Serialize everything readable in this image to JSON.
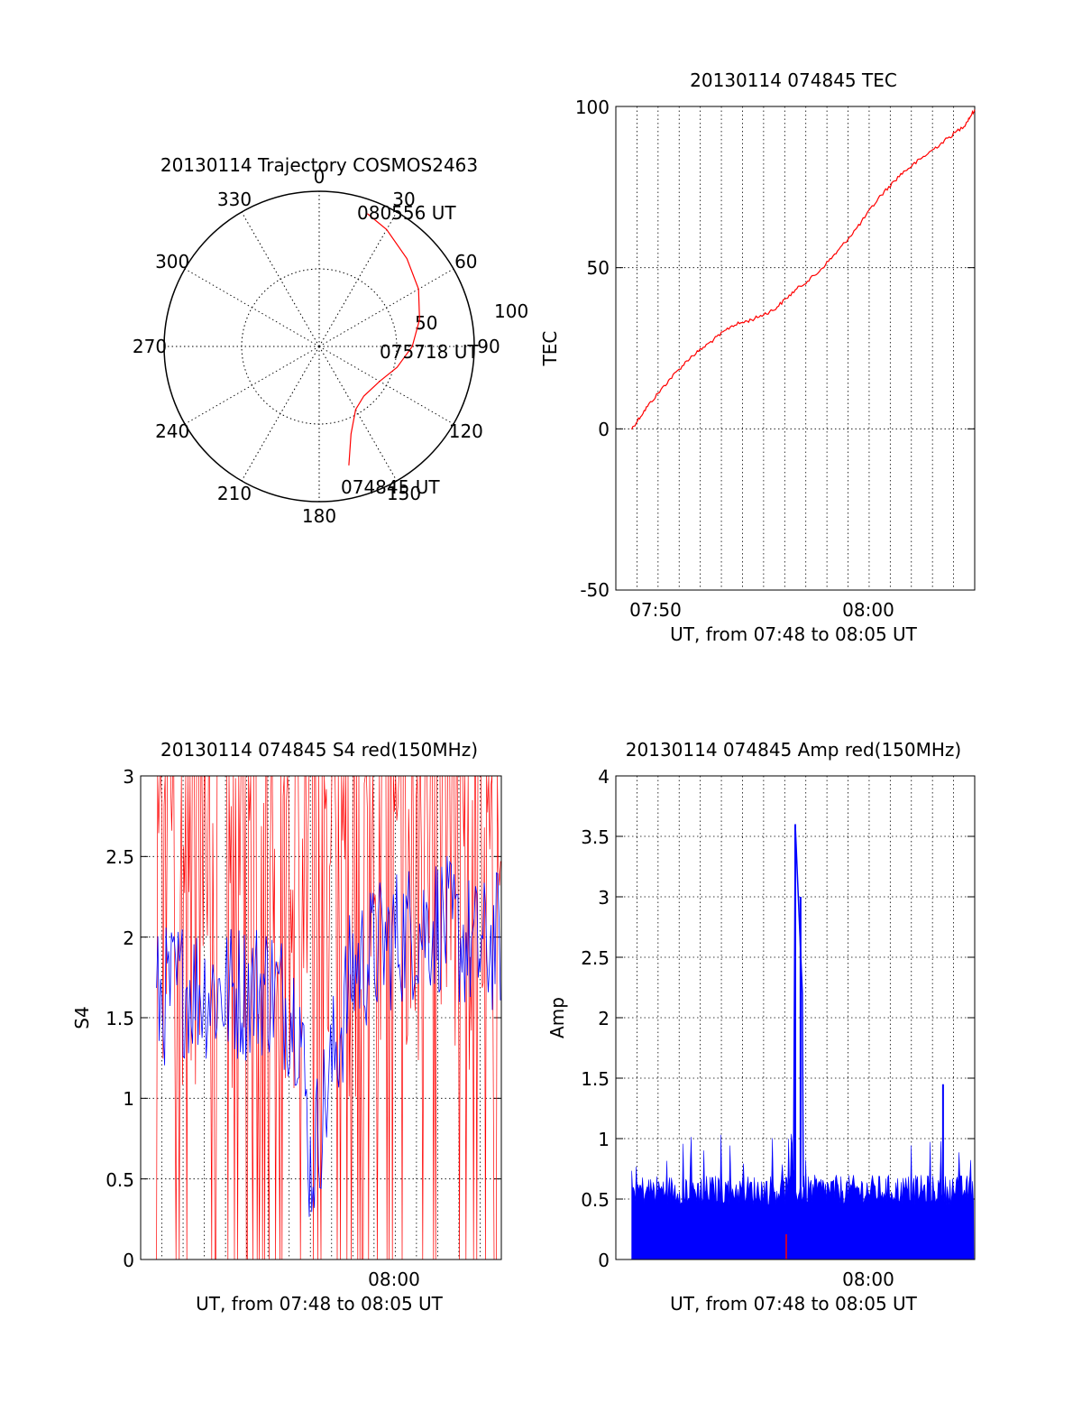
{
  "chart_data": [
    {
      "type": "polar",
      "title": "20130114 Trajectory COSMOS2463",
      "azimuth_labels": [
        "0",
        "30",
        "60",
        "90",
        "120",
        "150",
        "180",
        "210",
        "240",
        "270",
        "300",
        "330"
      ],
      "radial_labels": [
        "50",
        "100"
      ],
      "radial_max": 100,
      "grid": true,
      "series": [
        {
          "color": "#ff0000",
          "points": [
            [
              166,
              79
            ],
            [
              160,
              60
            ],
            [
              150,
              47
            ],
            [
              138,
              43
            ],
            [
              120,
              45
            ],
            [
              105,
              52
            ],
            [
              90,
              60
            ],
            [
              75,
              67
            ],
            [
              60,
              74
            ],
            [
              45,
              80
            ],
            [
              30,
              87
            ],
            [
              20,
              91
            ]
          ],
          "annotations": [
            {
              "text": "074845 UT"
            },
            {
              "text": "075718 UT"
            },
            {
              "text": "080556 UT"
            }
          ]
        }
      ]
    },
    {
      "type": "line",
      "title": "20130114 074845 TEC",
      "xlabel": "UT, from 07:48 to 08:05 UT",
      "ylabel": "TEC",
      "xlim": [
        "07:48",
        "08:05"
      ],
      "ylim": [
        -50,
        100
      ],
      "yticks": [
        "-50",
        "0",
        "50",
        "100"
      ],
      "xticks": [
        "07:50",
        "08:00"
      ],
      "grid": true,
      "series": [
        {
          "color": "#ff0000",
          "x": [
            "07:48:45",
            "07:49:30",
            "07:50:30",
            "07:51:30",
            "07:52:30",
            "07:53:30",
            "07:54:30",
            "07:55:30",
            "07:56:30",
            "07:57:30",
            "07:58:30",
            "07:59:30",
            "08:00:30",
            "08:01:30",
            "08:02:30",
            "08:03:30",
            "08:04:30",
            "08:05:00"
          ],
          "y": [
            0,
            7,
            15,
            22,
            27,
            32,
            34,
            37,
            43,
            48,
            55,
            63,
            72,
            79,
            84,
            89,
            94,
            99
          ]
        }
      ]
    },
    {
      "type": "line",
      "title": "20130114 074845 S4 red(150MHz)",
      "xlabel": "UT, from 07:48 to 08:05 UT",
      "ylabel": "S4",
      "xlim": [
        "07:48",
        "08:05"
      ],
      "ylim": [
        0,
        3
      ],
      "yticks": [
        "0",
        "0.5",
        "1",
        "1.5",
        "2",
        "2.5",
        "3"
      ],
      "xticks": [
        "08:00"
      ],
      "grid": true,
      "series": [
        {
          "color": "#ff0000",
          "description_values": "dense noisy signal clipped between 0 and 3"
        },
        {
          "color": "#0000ff",
          "x": [
            "07:48:45",
            "07:50:00",
            "07:52:00",
            "07:54:00",
            "07:55:30",
            "07:56:00",
            "07:58:00",
            "08:00:00",
            "08:02:00",
            "08:04:00",
            "08:05:00"
          ],
          "y": [
            1.6,
            1.7,
            1.65,
            1.7,
            1.5,
            0.55,
            1.8,
            2.0,
            2.1,
            1.9,
            2.0
          ]
        }
      ]
    },
    {
      "type": "line",
      "title": "20130114 074845 Amp red(150MHz)",
      "xlabel": "UT, from 07:48 to 08:05 UT",
      "ylabel": "Amp",
      "xlim": [
        "07:48",
        "08:05"
      ],
      "ylim": [
        0,
        4
      ],
      "yticks": [
        "0",
        "0.5",
        "1",
        "1.5",
        "2",
        "2.5",
        "3",
        "3.5",
        "4"
      ],
      "xticks": [
        "08:00"
      ],
      "grid": true,
      "series": [
        {
          "color": "#0000ff",
          "x": [
            "07:48:45",
            "07:52:00",
            "07:55:00",
            "07:56:30",
            "07:56:45",
            "07:57:00",
            "07:59:00",
            "08:02:00",
            "08:03:30",
            "08:05:00"
          ],
          "y": [
            0.6,
            0.65,
            0.6,
            3.6,
            3.0,
            0.6,
            0.6,
            0.6,
            1.45,
            0.7
          ]
        },
        {
          "color": "#ff0000",
          "x": [
            "07:56:40"
          ],
          "y": [
            0.2
          ]
        }
      ]
    }
  ]
}
